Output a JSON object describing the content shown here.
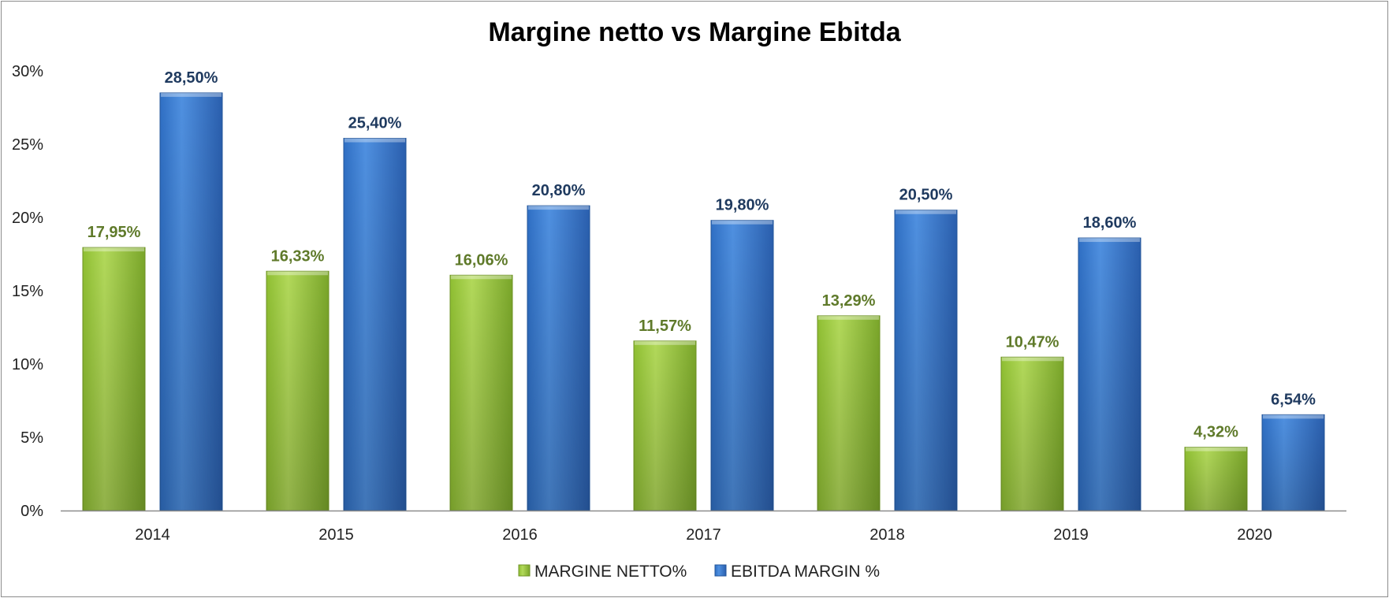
{
  "chart_data": {
    "type": "bar",
    "title": "Margine netto vs Margine Ebitda",
    "xlabel": "",
    "ylabel": "",
    "categories": [
      "2014",
      "2015",
      "2016",
      "2017",
      "2018",
      "2019",
      "2020"
    ],
    "ylim": [
      0,
      30
    ],
    "yticks": [
      0,
      5,
      10,
      15,
      20,
      25,
      30
    ],
    "ytick_labels": [
      "0%",
      "5%",
      "10%",
      "15%",
      "20%",
      "25%",
      "30%"
    ],
    "grid": false,
    "legend_position": "bottom",
    "series": [
      {
        "name": "MARGINE NETTO%",
        "color": "#9bc83e",
        "label_color": "#5f7a2a",
        "values": [
          17.95,
          16.33,
          16.06,
          11.57,
          13.29,
          10.47,
          4.32
        ],
        "labels": [
          "17,95%",
          "16,33%",
          "16,06%",
          "11,57%",
          "13,29%",
          "10,47%",
          "4,32%"
        ]
      },
      {
        "name": "EBITDA MARGIN %",
        "color": "#3c7fd3",
        "label_color": "#1f3a5f",
        "values": [
          28.5,
          25.4,
          20.8,
          19.8,
          20.5,
          18.6,
          6.54
        ],
        "labels": [
          "28,50%",
          "25,40%",
          "20,80%",
          "19,80%",
          "20,50%",
          "18,60%",
          "6,54%"
        ]
      }
    ]
  }
}
